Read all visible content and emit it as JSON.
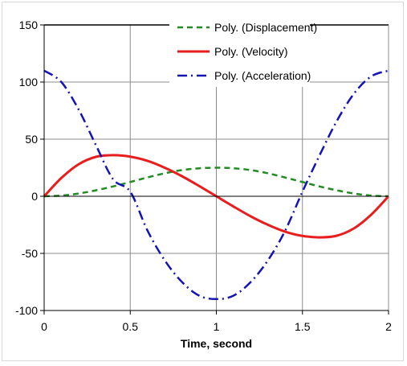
{
  "chart_data": {
    "type": "line",
    "title": "",
    "xlabel": "Time, second",
    "ylabel": "",
    "xlim": [
      0,
      2
    ],
    "ylim": [
      -100,
      150
    ],
    "x_ticks": [
      "0",
      "0.5",
      "1",
      "1.5",
      "2"
    ],
    "y_ticks": [
      "-100",
      "-50",
      "0",
      "50",
      "100",
      "150"
    ],
    "grid": true,
    "legend_position": "top-right",
    "series": [
      {
        "name": "Poly. (Displacement)",
        "color": "#228b22",
        "style": "dashed",
        "x": [
          0,
          0.1,
          0.2,
          0.3,
          0.4,
          0.5,
          0.6,
          0.7,
          0.8,
          0.9,
          1.0,
          1.1,
          1.2,
          1.3,
          1.4,
          1.5,
          1.6,
          1.7,
          1.8,
          1.9,
          2.0
        ],
        "y": [
          0,
          0.6,
          2.4,
          5.2,
          8.6,
          12.5,
          16.5,
          20.1,
          22.9,
          24.5,
          25.0,
          24.5,
          22.9,
          20.1,
          16.4,
          12.5,
          8.6,
          5.2,
          2.4,
          0.6,
          0
        ]
      },
      {
        "name": "Poly. (Velocity)",
        "color": "#e81e1e",
        "style": "solid",
        "x": [
          0,
          0.1,
          0.2,
          0.3,
          0.4,
          0.5,
          0.6,
          0.7,
          0.8,
          0.9,
          1.0,
          1.1,
          1.2,
          1.3,
          1.4,
          1.5,
          1.6,
          1.7,
          1.8,
          1.9,
          2.0
        ],
        "y": [
          0,
          16.0,
          28.0,
          34.5,
          36.0,
          34.7,
          31.0,
          25.0,
          17.6,
          9.0,
          0,
          -9.0,
          -17.6,
          -25.0,
          -31.0,
          -34.7,
          -36.0,
          -34.5,
          -28.0,
          -16.0,
          0
        ]
      },
      {
        "name": "Poly. (Acceleration)",
        "color": "#1414b4",
        "style": "dash-dot",
        "x": [
          0,
          0.1,
          0.2,
          0.3,
          0.4,
          0.5,
          0.6,
          0.7,
          0.8,
          0.9,
          1.0,
          1.1,
          1.2,
          1.3,
          1.4,
          1.5,
          1.6,
          1.7,
          1.8,
          1.9,
          2.0
        ],
        "y": [
          110,
          100,
          76,
          45,
          15,
          4,
          -30,
          -56,
          -75,
          -87,
          -90,
          -87,
          -75,
          -56,
          -30,
          4,
          36,
          66,
          90,
          105,
          110
        ]
      }
    ]
  }
}
